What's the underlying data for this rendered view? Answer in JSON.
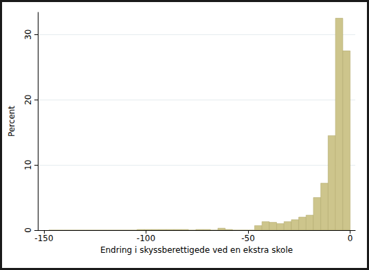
{
  "chart_data": {
    "type": "histogram",
    "x_label": "Endring i skyssberettigede ved en ekstra skole",
    "y_label": "Percent",
    "bins": [
      -147.6,
      -144,
      -140.4,
      -136.8,
      -133.2,
      -129.6,
      -126,
      -122.4,
      -118.8,
      -115.2,
      -111.6,
      -108,
      -104.4,
      -100.8,
      -97.2,
      -93.6,
      -90,
      -86.4,
      -82.8,
      -79.2,
      -75.6,
      -72,
      -68.4,
      -64.8,
      -61.2,
      -57.6,
      -54,
      -50.4,
      -46.8,
      -43.2,
      -39.6,
      -36,
      -32.4,
      -28.8,
      -25.2,
      -21.6,
      -18,
      -14.4,
      -10.8,
      -7.2,
      -3.6,
      0
    ],
    "values": [
      0,
      0,
      0,
      0,
      0,
      0,
      0,
      0,
      0,
      0,
      0,
      0,
      0.1,
      0.1,
      0.1,
      0.1,
      0.1,
      0.1,
      0.1,
      0,
      0.1,
      0.1,
      0,
      0.3,
      0.1,
      0,
      0,
      0,
      0.7,
      1.3,
      1.2,
      1.0,
      1.3,
      1.6,
      2.0,
      2.3,
      5.0,
      7.2,
      14.5,
      32.5,
      27.5
    ],
    "color": "#cdc58c",
    "xlim": [
      -153,
      2.5
    ],
    "xticks": [
      -150,
      -100,
      -50,
      0
    ],
    "ylim": [
      0,
      33.4
    ],
    "yticks": [
      0,
      10,
      20,
      30
    ],
    "grid": true
  }
}
